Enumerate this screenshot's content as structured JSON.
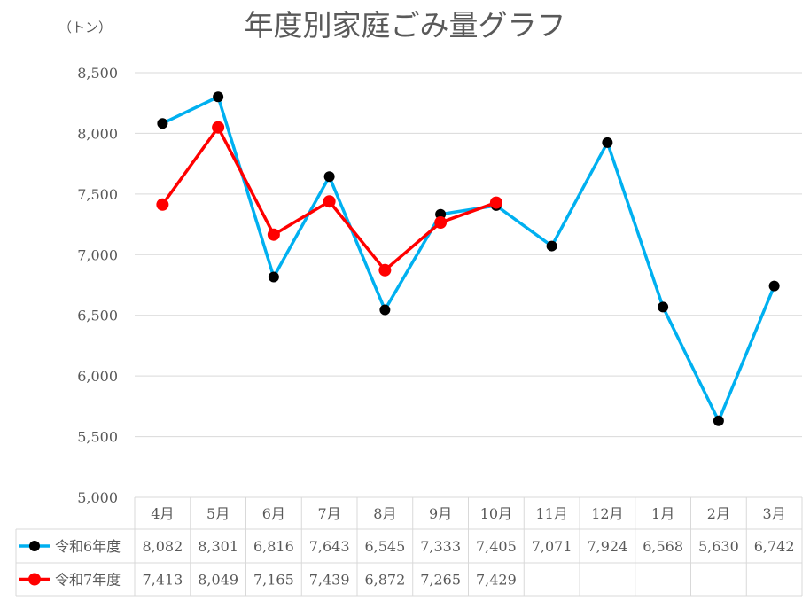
{
  "chart_data": {
    "type": "line",
    "title": "年度別家庭ごみ量グラフ",
    "ylabel": "（トン）",
    "xlabel": "",
    "categories": [
      "4月",
      "5月",
      "6月",
      "7月",
      "8月",
      "9月",
      "10月",
      "11月",
      "12月",
      "1月",
      "2月",
      "3月"
    ],
    "ylim": [
      5000,
      8500
    ],
    "yticks": [
      5000,
      5500,
      6000,
      6500,
      7000,
      7500,
      8000,
      8500
    ],
    "ytick_labels": [
      "5,000",
      "5,500",
      "6,000",
      "6,500",
      "7,000",
      "7,500",
      "8,000",
      "8,500"
    ],
    "grid": true,
    "legend": "data-table",
    "series": [
      {
        "name": "令和6年度",
        "line_color": "#00B0F0",
        "marker_color": "#000000",
        "values": [
          8082,
          8301,
          6816,
          7643,
          6545,
          7333,
          7405,
          7071,
          7924,
          6568,
          5630,
          6742
        ],
        "labels": [
          "8,082",
          "8,301",
          "6,816",
          "7,643",
          "6,545",
          "7,333",
          "7,405",
          "7,071",
          "7,924",
          "6,568",
          "5,630",
          "6,742"
        ]
      },
      {
        "name": "令和7年度",
        "line_color": "#FF0000",
        "marker_color": "#FF0000",
        "values": [
          7413,
          8049,
          7165,
          7439,
          6872,
          7265,
          7429,
          null,
          null,
          null,
          null,
          null
        ],
        "labels": [
          "7,413",
          "8,049",
          "7,165",
          "7,439",
          "6,872",
          "7,265",
          "7,429",
          "",
          "",
          "",
          "",
          ""
        ]
      }
    ]
  }
}
